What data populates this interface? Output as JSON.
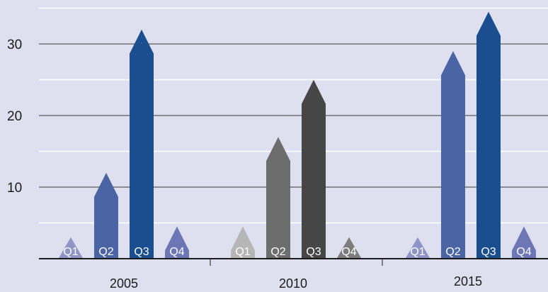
{
  "chart_data": {
    "type": "bar",
    "shape": "arrow",
    "title": "",
    "xlabel": "",
    "ylabel": "",
    "ylim": [
      0,
      35
    ],
    "yticks": [
      10,
      20,
      30
    ],
    "grid": true,
    "legend": "none",
    "groups": [
      {
        "label": "2005",
        "bars": [
          {
            "label": "Q1",
            "value": 3,
            "color": "#8f96c7"
          },
          {
            "label": "Q2",
            "value": 12,
            "color": "#4b64a3"
          },
          {
            "label": "Q3",
            "value": 32,
            "color": "#1b4e8e"
          },
          {
            "label": "Q4",
            "value": 4.5,
            "color": "#6d77b5"
          }
        ]
      },
      {
        "label": "2010",
        "bars": [
          {
            "label": "Q1",
            "value": 4.5,
            "color": "#b6b6b6"
          },
          {
            "label": "Q2",
            "value": 17,
            "color": "#6d6d6d"
          },
          {
            "label": "Q3",
            "value": 25,
            "color": "#464646"
          },
          {
            "label": "Q4",
            "value": 3,
            "color": "#7d7d7d"
          }
        ]
      },
      {
        "label": "2015",
        "bars": [
          {
            "label": "Q1",
            "value": 3,
            "color": "#8f96c7"
          },
          {
            "label": "Q2",
            "value": 29,
            "color": "#4b64a3"
          },
          {
            "label": "Q3",
            "value": 34.5,
            "color": "#1b4e8e"
          },
          {
            "label": "Q4",
            "value": 4.5,
            "color": "#6d77b5"
          }
        ]
      }
    ]
  }
}
